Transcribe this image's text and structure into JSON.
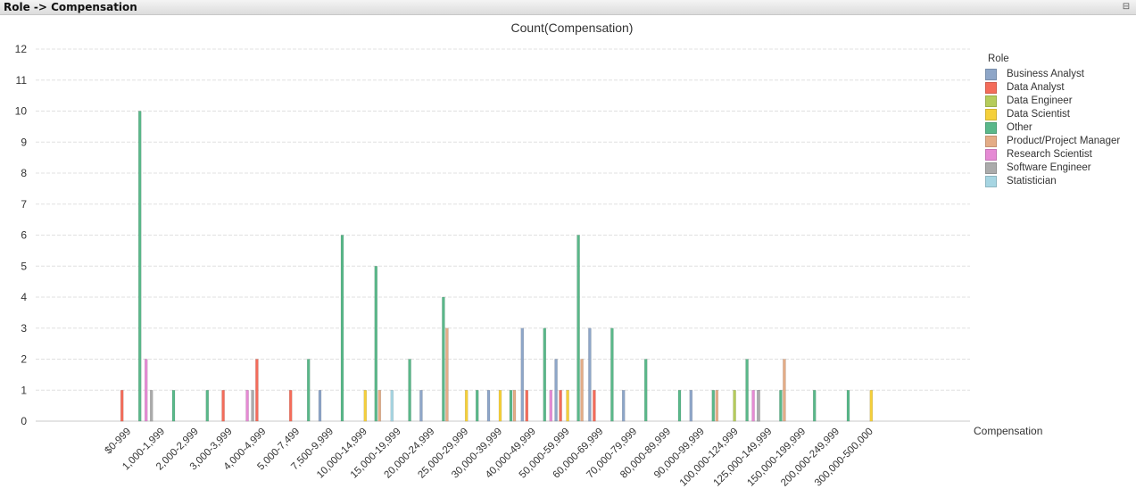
{
  "window": {
    "title": "Role -> Compensation",
    "restore_glyph": "⊟"
  },
  "legend": {
    "title": "Role"
  },
  "chart_data": {
    "type": "bar",
    "title": "Count(Compensation)",
    "xlabel": "Compensation",
    "ylabel": "",
    "ylim": [
      0,
      12
    ],
    "yticks": [
      0,
      1,
      2,
      3,
      4,
      5,
      6,
      7,
      8,
      9,
      10,
      11,
      12
    ],
    "grid": true,
    "legend_position": "right",
    "categories": [
      "$0-999",
      "1,000-1,999",
      "2,000-2,999",
      "3,000-3,999",
      "4,000-4,999",
      "5,000-7,499",
      "7,500-9,999",
      "10,000-14,999",
      "15,000-19,999",
      "20,000-24,999",
      "25,000-29,999",
      "30,000-39,999",
      "40,000-49,999",
      "50,000-59,999",
      "60,000-69,999",
      "70,000-79,999",
      "80,000-89,999",
      "90,000-99,999",
      "100,000-124,999",
      "125,000-149,999",
      "150,000-199,999",
      "200,000-249,999",
      "300,000-500,000"
    ],
    "series": [
      {
        "name": "Business Analyst",
        "color": "#8ea6c8",
        "values": [
          0,
          0,
          0,
          0,
          0,
          0,
          1,
          0,
          0,
          1,
          0,
          1,
          3,
          2,
          3,
          1,
          0,
          1,
          0,
          1,
          0,
          0,
          0
        ]
      },
      {
        "name": "Data Analyst",
        "color": "#f46c5a",
        "values": [
          1,
          0,
          0,
          1,
          2,
          1,
          0,
          0,
          0,
          0,
          0,
          0,
          1,
          1,
          1,
          0,
          0,
          0,
          0,
          0,
          0,
          0,
          0
        ]
      },
      {
        "name": "Data Engineer",
        "color": "#b5cc5b",
        "values": [
          0,
          0,
          0,
          0,
          0,
          0,
          0,
          0,
          0,
          0,
          0,
          0,
          0,
          0,
          0,
          0,
          0,
          0,
          1,
          0,
          0,
          0,
          0
        ]
      },
      {
        "name": "Data Scientist",
        "color": "#f5d03b",
        "values": [
          0,
          0,
          0,
          0,
          0,
          0,
          0,
          1,
          0,
          0,
          1,
          1,
          0,
          1,
          0,
          0,
          0,
          0,
          0,
          0,
          0,
          0,
          1
        ]
      },
      {
        "name": "Other",
        "color": "#5ab88a",
        "values": [
          10,
          1,
          1,
          0,
          0,
          2,
          6,
          5,
          2,
          4,
          1,
          1,
          3,
          6,
          3,
          2,
          1,
          1,
          2,
          1,
          1,
          1,
          0
        ]
      },
      {
        "name": "Product/Project Manager",
        "color": "#e4ac86",
        "values": [
          0,
          0,
          0,
          0,
          0,
          0,
          0,
          1,
          0,
          3,
          0,
          1,
          0,
          2,
          0,
          0,
          0,
          1,
          0,
          2,
          0,
          0,
          0
        ]
      },
      {
        "name": "Research Scientist",
        "color": "#e58ad4",
        "values": [
          2,
          0,
          0,
          1,
          0,
          0,
          0,
          0,
          0,
          0,
          0,
          0,
          1,
          0,
          0,
          0,
          0,
          0,
          1,
          0,
          0,
          0,
          0
        ]
      },
      {
        "name": "Software Engineer",
        "color": "#ababab",
        "values": [
          1,
          0,
          0,
          1,
          0,
          0,
          0,
          0,
          0,
          0,
          0,
          0,
          0,
          0,
          0,
          0,
          0,
          0,
          1,
          0,
          0,
          0,
          0
        ]
      },
      {
        "name": "Statistician",
        "color": "#a6d5e2",
        "values": [
          0,
          0,
          0,
          0,
          0,
          0,
          0,
          1,
          0,
          0,
          0,
          0,
          0,
          0,
          0,
          0,
          0,
          0,
          0,
          0,
          0,
          0,
          0
        ]
      }
    ]
  }
}
